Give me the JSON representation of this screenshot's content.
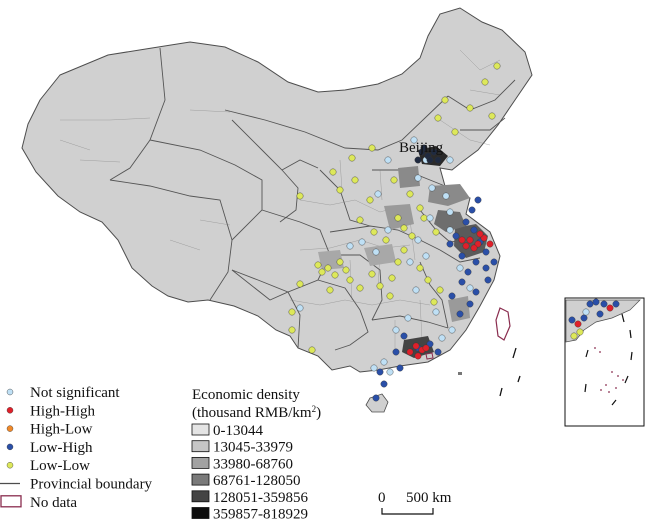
{
  "map": {
    "city_label": "Beijing",
    "colors": {
      "prefecture_fill": "#d0d0d0",
      "boundary": "#4d4d4d",
      "not_significant": "#bfe0f5",
      "high_high": "#e0202a",
      "high_low": "#f0892a",
      "low_high": "#2a4fa8",
      "low_low": "#dde85a",
      "no_data_outline": "#8a2d4f"
    }
  },
  "lisa_legend": {
    "items": [
      {
        "label": "Not significant",
        "kind": "dot",
        "color": "#bfe0f5"
      },
      {
        "label": "High-High",
        "kind": "dot",
        "color": "#e0202a"
      },
      {
        "label": "High-Low",
        "kind": "dot",
        "color": "#f0892a"
      },
      {
        "label": "Low-High",
        "kind": "dot",
        "color": "#2a4fa8"
      },
      {
        "label": "Low-Low",
        "kind": "dot",
        "color": "#dde85a"
      },
      {
        "label": "Provincial boundary",
        "kind": "line",
        "color": "#4d4d4d"
      },
      {
        "label": "No data",
        "kind": "box",
        "color": "#8a2d4f"
      }
    ]
  },
  "density_legend": {
    "title_line1": "Economic density",
    "title_line2": "(thousand RMB/km",
    "title_sup": "2",
    "title_close": ")",
    "classes": [
      {
        "label": "0-13044",
        "color": "#e4e4e4"
      },
      {
        "label": "13045-33979",
        "color": "#c6c6c6"
      },
      {
        "label": "33980-68760",
        "color": "#a2a2a2"
      },
      {
        "label": "68761-128050",
        "color": "#7a7a7a"
      },
      {
        "label": "128051-359856",
        "color": "#444444"
      },
      {
        "label": "359857-818929",
        "color": "#0d0d0d"
      }
    ]
  },
  "scale_bar": {
    "start_label": "0",
    "end_label": "500 km"
  }
}
